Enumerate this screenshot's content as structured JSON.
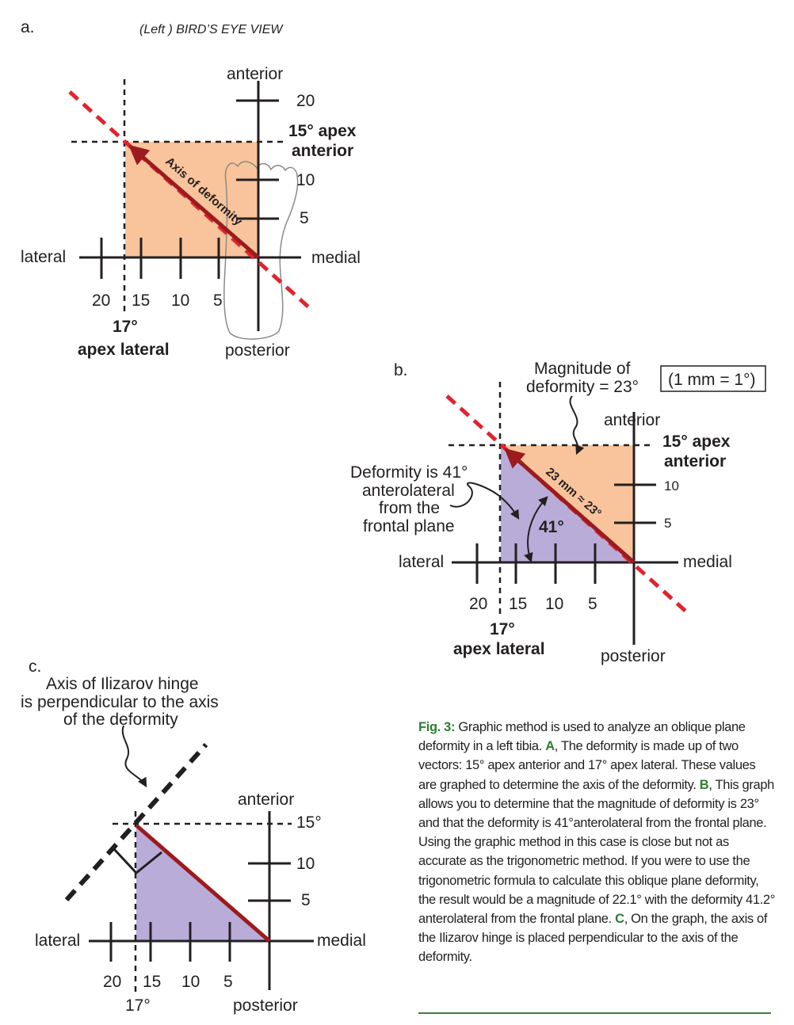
{
  "colors": {
    "orange": "#f9c49b",
    "purple": "#b9acd8",
    "axis": "#9b1b1e",
    "dash_red": "#e0242f",
    "text": "#231f20",
    "caption_highlight": "#2e7d32"
  },
  "panel_a": {
    "letter": "a.",
    "title": "(Left ) BIRD’S EYE VIEW",
    "anterior": "anterior",
    "posterior": "posterior",
    "lateral": "lateral",
    "medial": "medial",
    "y_ticks": [
      "20",
      "10",
      "5"
    ],
    "x_ticks": [
      "20",
      "15",
      "10",
      "5"
    ],
    "apex_anterior_line1": "15° apex",
    "apex_anterior_line2": "anterior",
    "apex_lateral_line1": "17°",
    "apex_lateral_line2": "apex lateral",
    "axis_label": "Axis of deformity"
  },
  "panel_b": {
    "letter": "b.",
    "magnitude_line1": "Magnitude of",
    "magnitude_line2": "deformity = 23°",
    "scale_note": "(1 mm = 1°)",
    "anterior": "anterior",
    "posterior": "posterior",
    "lateral": "lateral",
    "medial": "medial",
    "apex_anterior_line1": "15° apex",
    "apex_anterior_line2": "anterior",
    "apex_lateral_line1": "17°",
    "apex_lateral_line2": "apex lateral",
    "y_ticks": [
      "10",
      "5"
    ],
    "x_ticks": [
      "20",
      "15",
      "10",
      "5"
    ],
    "deformity_line1": "Deformity is 41°",
    "deformity_line2": "anterolateral",
    "deformity_line3": "from the",
    "deformity_line4": "frontal plane",
    "angle_label": "41°",
    "axis_label": "23 mm ≈ 23°"
  },
  "panel_c": {
    "letter": "c.",
    "hinge_line1": "Axis of Ilizarov hinge",
    "hinge_line2": "is perpendicular to the axis",
    "hinge_line3": "of the deformity",
    "anterior": "anterior",
    "posterior": "posterior",
    "lateral": "lateral",
    "medial": "medial",
    "y_ticks": [
      "15°",
      "10",
      "5"
    ],
    "x_ticks": [
      "20",
      "15",
      "10",
      "5"
    ],
    "x_marker": "17°"
  },
  "caption": {
    "fig": "Fig. 3:",
    "part1": " Graphic method is used to analyze an oblique plane deformity in a left tibia. ",
    "A": "A",
    "part2": ", The deformity is made up of two vectors: 15° apex anterior and 17° apex lateral. These values are graphed to determine the axis of the deformity. ",
    "B": "B",
    "part3": ", This graph allows you to determine that the magnitude of deformity is 23° and that the deformity is 41°anterolateral from the frontal plane. Using the graphic method in this case is close but not as accurate as the trigonometric method. If you were to use the trigonometric formula to calculate this oblique plane deformity, the result would be a magnitude of 22.1° with the deformity 41.2° anterolateral from the frontal plane. ",
    "C": "C",
    "part4": ", On the graph, the axis of the Ilizarov hinge is placed perpendicular to the axis of the deformity."
  }
}
